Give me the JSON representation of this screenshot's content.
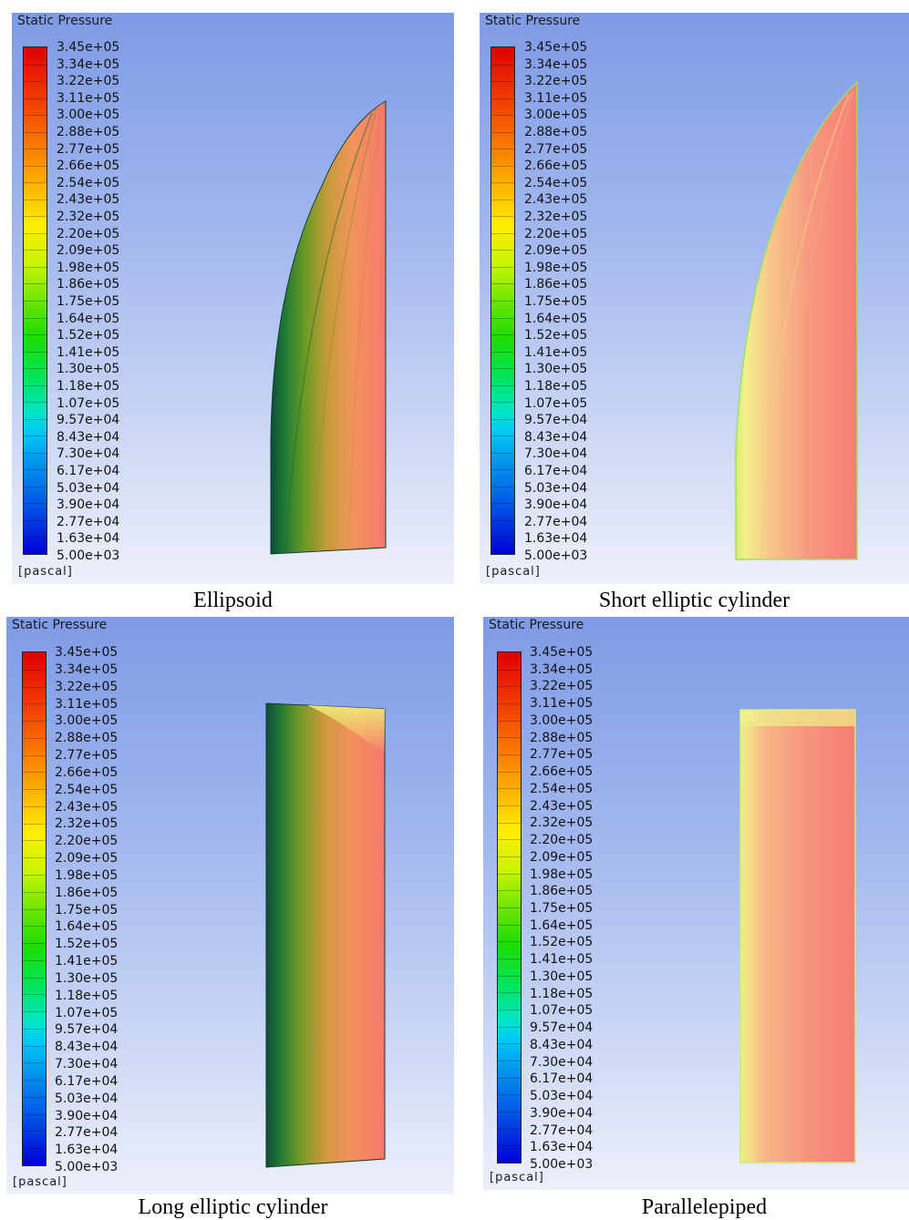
{
  "panels": [
    {
      "title": "Static Pressure",
      "unit": "[pascal]",
      "caption": "Ellipsoid"
    },
    {
      "title": "Static Pressure",
      "unit": "[pascal]",
      "caption": "Short elliptic cylinder"
    },
    {
      "title": "Static Pressure",
      "unit": "[pascal]",
      "caption": "Long elliptic cylinder"
    },
    {
      "title": "Static Pressure",
      "unit": "[pascal]",
      "caption": "Parallelepiped"
    }
  ],
  "legend_values": [
    "3.45e+05",
    "3.34e+05",
    "3.22e+05",
    "3.11e+05",
    "3.00e+05",
    "2.88e+05",
    "2.77e+05",
    "2.66e+05",
    "2.54e+05",
    "2.43e+05",
    "2.32e+05",
    "2.20e+05",
    "2.09e+05",
    "1.98e+05",
    "1.86e+05",
    "1.75e+05",
    "1.64e+05",
    "1.52e+05",
    "1.41e+05",
    "1.30e+05",
    "1.18e+05",
    "1.07e+05",
    "9.57e+04",
    "8.43e+04",
    "7.30e+04",
    "6.17e+04",
    "5.03e+04",
    "3.90e+04",
    "2.77e+04",
    "1.63e+04",
    "5.00e+03"
  ],
  "colors": {
    "high": "#ff0000",
    "low": "#0000ff",
    "field_pink": "#f57d78",
    "edge_yellow": "#f2f58a",
    "edge_green": "#1f6b3a"
  }
}
